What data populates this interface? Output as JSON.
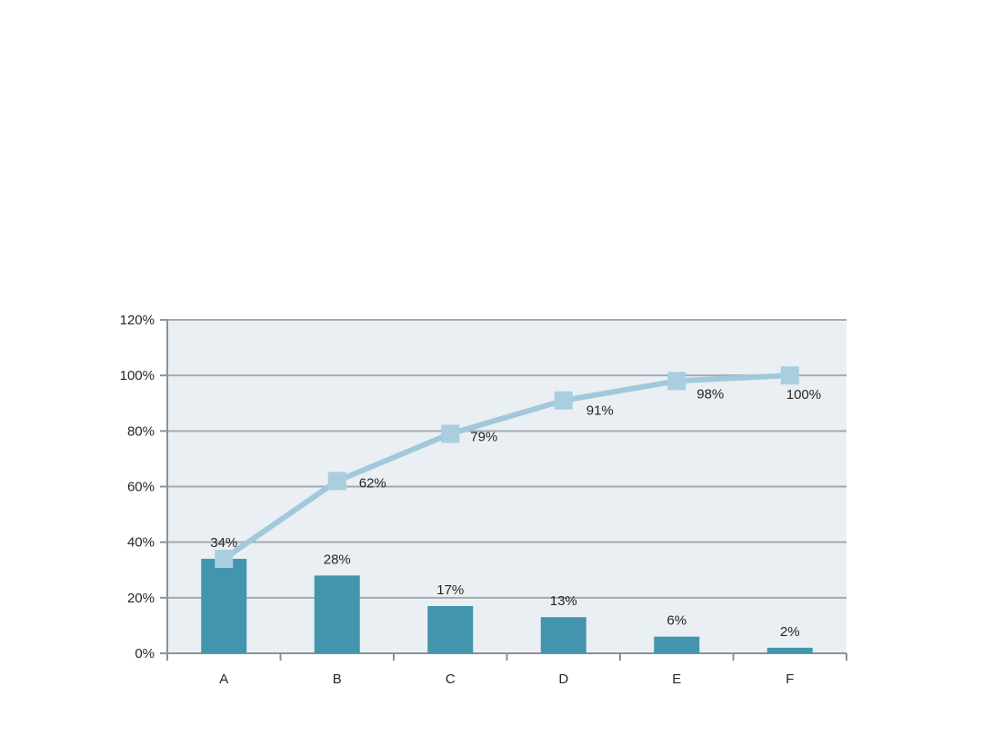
{
  "page": {
    "background_color": "#ffffff"
  },
  "chart_data": {
    "type": "bar",
    "subtype": "pareto-combo-bar-and-cumulative-line",
    "title": "",
    "xlabel": "",
    "ylabel": "",
    "categories": [
      "A",
      "B",
      "C",
      "D",
      "E",
      "F"
    ],
    "series": [
      {
        "name": "frequency-bars",
        "type": "bar",
        "values": [
          34,
          28,
          17,
          13,
          6,
          2
        ],
        "data_labels": [
          "34%",
          "28%",
          "17%",
          "13%",
          "6%",
          "2%"
        ],
        "color": "#4395ad"
      },
      {
        "name": "cumulative-line",
        "type": "line",
        "values": [
          34,
          62,
          79,
          91,
          98,
          100
        ],
        "data_labels": [
          "34%",
          "62%",
          "79%",
          "91%",
          "98%",
          "100%"
        ],
        "visible_point_labels": [
          "62%",
          "79%",
          "91%",
          "98%",
          "100%"
        ],
        "line_color": "#a2c8db",
        "marker_color": "#a9cee0",
        "marker_shape": "square"
      }
    ],
    "y_axis": {
      "min": 0,
      "max": 120,
      "step": 20,
      "tick_labels": [
        "0%",
        "20%",
        "40%",
        "60%",
        "80%",
        "100%",
        "120%"
      ]
    },
    "x_axis": {
      "tick_labels": [
        "A",
        "B",
        "C",
        "D",
        "E",
        "F"
      ]
    },
    "grid": true,
    "legend": "none",
    "colors": {
      "plot_background": "#e9eff3",
      "gridline": "#a4aab0",
      "axis": "#8a9197",
      "text": "#262626"
    }
  }
}
